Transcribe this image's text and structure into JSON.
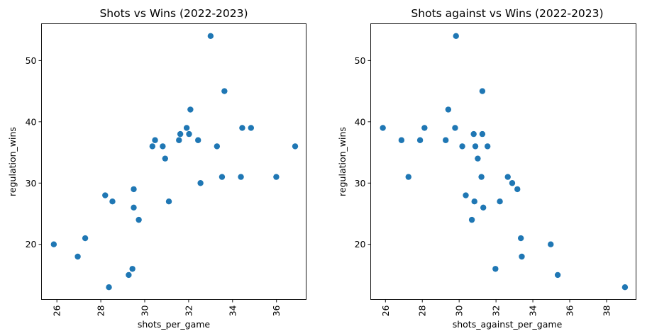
{
  "chart_data": [
    {
      "type": "scatter",
      "title": "Shots vs Wins (2022-2023)",
      "xlabel": "shots_per_game",
      "ylabel": "regulation_wins",
      "xlim": [
        25.3,
        37.35
      ],
      "ylim": [
        11.0,
        56.0
      ],
      "xticks": [
        26,
        28,
        30,
        32,
        34,
        36
      ],
      "yticks": [
        20,
        30,
        40,
        50
      ],
      "color": "#1f77b4",
      "points": [
        [
          25.86,
          20
        ],
        [
          26.95,
          18
        ],
        [
          27.29,
          21
        ],
        [
          28.2,
          28
        ],
        [
          28.37,
          13
        ],
        [
          28.53,
          27
        ],
        [
          29.27,
          15
        ],
        [
          29.44,
          16
        ],
        [
          29.5,
          26
        ],
        [
          29.5,
          29
        ],
        [
          29.73,
          24
        ],
        [
          30.35,
          36
        ],
        [
          30.47,
          37
        ],
        [
          30.82,
          36
        ],
        [
          30.93,
          34
        ],
        [
          31.1,
          27
        ],
        [
          31.56,
          37
        ],
        [
          31.62,
          38
        ],
        [
          31.91,
          39
        ],
        [
          32.02,
          38
        ],
        [
          32.08,
          42
        ],
        [
          32.43,
          37
        ],
        [
          32.54,
          30
        ],
        [
          33.0,
          54
        ],
        [
          33.29,
          36
        ],
        [
          33.52,
          31
        ],
        [
          33.63,
          45
        ],
        [
          34.38,
          31
        ],
        [
          34.44,
          39
        ],
        [
          34.84,
          39
        ],
        [
          35.99,
          31
        ],
        [
          36.85,
          36
        ]
      ]
    },
    {
      "type": "scatter",
      "title": "Shots against vs Wins (2022-2023)",
      "xlabel": "shots_against_per_game",
      "ylabel": "regulation_wins",
      "xlim": [
        25.2,
        39.6
      ],
      "ylim": [
        11.0,
        56.0
      ],
      "xticks": [
        26,
        28,
        30,
        32,
        34,
        36,
        38
      ],
      "yticks": [
        20,
        30,
        40,
        50
      ],
      "color": "#1f77b4",
      "points": [
        [
          25.86,
          39
        ],
        [
          26.87,
          37
        ],
        [
          27.25,
          31
        ],
        [
          27.88,
          37
        ],
        [
          28.12,
          39
        ],
        [
          29.27,
          37
        ],
        [
          29.41,
          42
        ],
        [
          29.78,
          39
        ],
        [
          29.83,
          54
        ],
        [
          30.17,
          36
        ],
        [
          30.36,
          28
        ],
        [
          30.69,
          24
        ],
        [
          30.79,
          38
        ],
        [
          30.83,
          27
        ],
        [
          30.88,
          36
        ],
        [
          31.01,
          34
        ],
        [
          31.21,
          31
        ],
        [
          31.26,
          45
        ],
        [
          31.26,
          38
        ],
        [
          31.31,
          26
        ],
        [
          31.54,
          36
        ],
        [
          31.97,
          16
        ],
        [
          32.21,
          27
        ],
        [
          32.64,
          31
        ],
        [
          32.88,
          30
        ],
        [
          33.16,
          29
        ],
        [
          33.35,
          21
        ],
        [
          33.4,
          18
        ],
        [
          34.97,
          20
        ],
        [
          35.35,
          15
        ],
        [
          39.0,
          13
        ]
      ]
    }
  ]
}
